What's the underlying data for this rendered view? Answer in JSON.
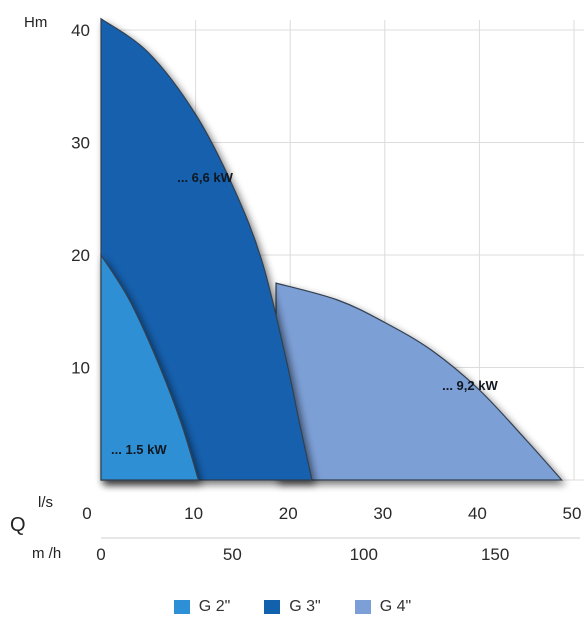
{
  "chart_data": {
    "type": "area",
    "ylabel": "Hm",
    "xlabel": "Q",
    "x_unit_primary": "l/s",
    "x_unit_secondary": "m /h",
    "xlim": [
      0,
      50
    ],
    "ylim": [
      0,
      40
    ],
    "y_ticks": [
      "40",
      "30",
      "20",
      "10"
    ],
    "x_ticks_ls": [
      "0",
      "10",
      "20",
      "30",
      "40",
      "50"
    ],
    "x_ticks_m3h": [
      "0",
      "50",
      "100",
      "150"
    ],
    "grid": true,
    "legend_position": "bottom",
    "series": [
      {
        "name": "G 4\"",
        "color": "#7b9fd6",
        "label": "... 9,2 kW",
        "points": [
          [
            18.5,
            17.5
          ],
          [
            25,
            16
          ],
          [
            30,
            14
          ],
          [
            35,
            11.5
          ],
          [
            40,
            8
          ],
          [
            45,
            3.5
          ],
          [
            48.7,
            0
          ]
        ]
      },
      {
        "name": "G 3\"",
        "color": "#1261ad",
        "label": "... 6,6 kW",
        "points": [
          [
            0,
            41
          ],
          [
            5,
            38
          ],
          [
            10,
            32.5
          ],
          [
            14,
            26
          ],
          [
            17,
            19.5
          ],
          [
            19.5,
            11
          ],
          [
            21,
            5
          ],
          [
            22.3,
            0
          ]
        ]
      },
      {
        "name": "G 2\"",
        "color": "#2d8fd5",
        "label": "... 1.5 kW",
        "points": [
          [
            0,
            20
          ],
          [
            3,
            16
          ],
          [
            6,
            10.5
          ],
          [
            8.5,
            5
          ],
          [
            10.3,
            0
          ]
        ]
      }
    ]
  }
}
